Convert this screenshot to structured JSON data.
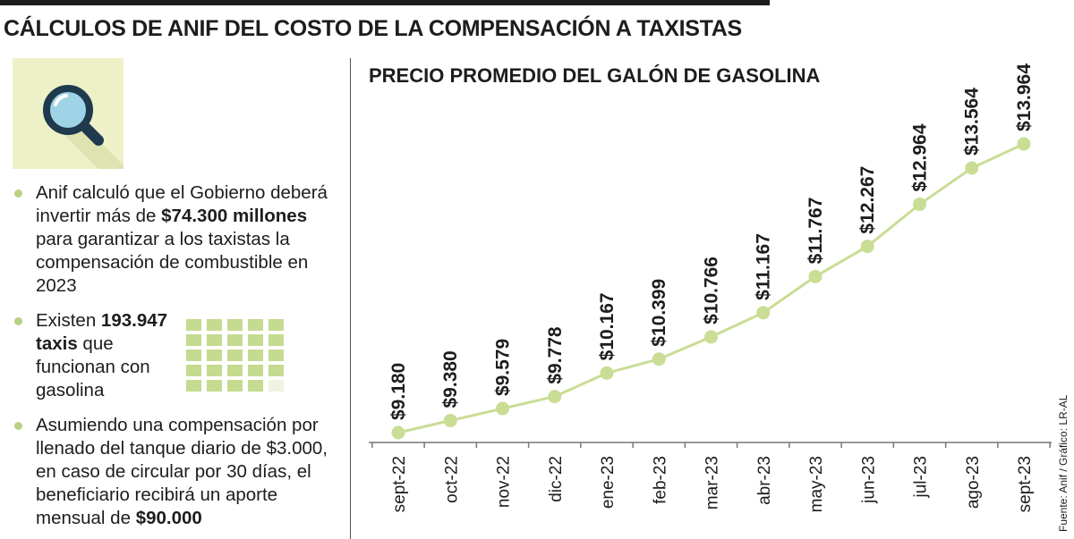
{
  "title": "CÁLCULOS DE ANIF DEL COSTO DE LA COMPENSACIÓN A TAXISTAS",
  "icon": "magnifier-icon",
  "colors": {
    "accent": "#b8d185",
    "line": "#c9dd95",
    "icon_bg": "#eef1c8",
    "icon_handle": "#1f3a4d"
  },
  "bullets": [
    {
      "pre": "Anif calculó que el Gobierno deberá invertir más de ",
      "bold": "$74.300 millones",
      "post": " para garantizar a los taxistas la compensación de combustible en 2023"
    },
    {
      "pre": "Existen ",
      "bold": "193.947 taxis",
      "post": " que funcionan con gasolina"
    },
    {
      "pre": "Asumiendo una compensación por llenado del tanque diario de $3.000, en caso de circular por 30 días, el beneficiario recibirá un aporte mensual de ",
      "bold": "$90.000",
      "post": ""
    }
  ],
  "taxi_grid": {
    "filled": 24,
    "total": 25
  },
  "source": "Fuente: Anif / Gráfico: LR-AL",
  "chart_data": {
    "type": "line",
    "title": "PRECIO PROMEDIO DEL GALÓN DE GASOLINA",
    "categories": [
      "sept-22",
      "oct-22",
      "nov-22",
      "dic-22",
      "ene-23",
      "feb-23",
      "mar-23",
      "abr-23",
      "may-23",
      "jun-23",
      "jul-23",
      "ago-23",
      "sept-23"
    ],
    "values": [
      9180,
      9380,
      9579,
      9778,
      10167,
      10399,
      10766,
      11167,
      11767,
      12267,
      12964,
      13564,
      13964
    ],
    "labels": [
      "$9.180",
      "$9.380",
      "$9.579",
      "$9.778",
      "$10.167",
      "$10.399",
      "$10.766",
      "$11.167",
      "$11.767",
      "$12.267",
      "$12.964",
      "$13.564",
      "$13.964"
    ],
    "grid": false,
    "legend": "none"
  }
}
